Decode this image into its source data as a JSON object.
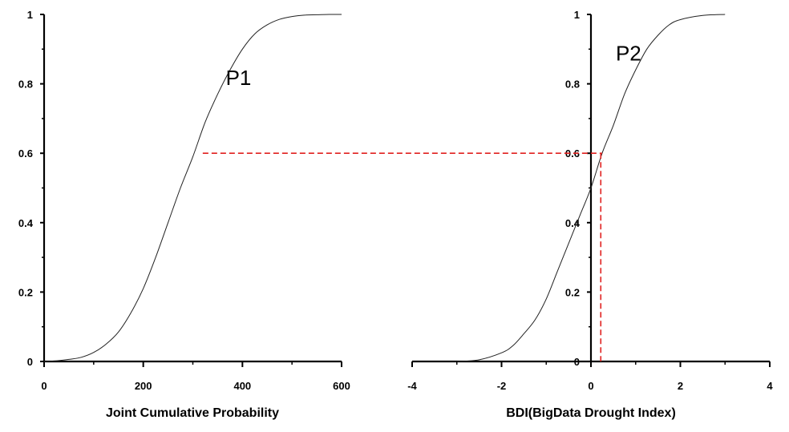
{
  "chart_data": [
    {
      "type": "line",
      "xlabel": "Joint Cumulative Probability",
      "xlim": [
        0,
        600
      ],
      "ylim": [
        0,
        1
      ],
      "x_ticks": [
        0,
        200,
        400,
        600
      ],
      "y_ticks": [
        0,
        0.2,
        0.4,
        0.6,
        0.8,
        1
      ],
      "x_tick_labels": [
        "0",
        "200",
        "400",
        "600"
      ],
      "y_tick_labels": [
        "0",
        "0.2",
        "0.4",
        "0.6",
        "0.8",
        "1"
      ],
      "series": [
        {
          "name": "P1",
          "x": [
            0,
            25,
            50,
            75,
            100,
            125,
            150,
            175,
            200,
            225,
            250,
            275,
            300,
            325,
            350,
            375,
            400,
            425,
            450,
            475,
            500,
            525,
            550,
            575,
            600
          ],
          "y": [
            0.0,
            0.002,
            0.006,
            0.012,
            0.026,
            0.05,
            0.085,
            0.14,
            0.21,
            0.3,
            0.4,
            0.5,
            0.59,
            0.69,
            0.77,
            0.84,
            0.9,
            0.944,
            0.97,
            0.986,
            0.994,
            0.998,
            0.999,
            1.0,
            1.0
          ]
        }
      ],
      "reference_lines": [
        {
          "style": "dashed",
          "color": "#e0201f",
          "from": [
            320,
            0.6
          ],
          "to": "P2 at 0.6"
        }
      ],
      "annotations": [
        {
          "text": "P1",
          "x": 402,
          "y": 0.82
        }
      ]
    },
    {
      "type": "line",
      "xlabel": "BDI(BigData Drought Index)",
      "xlim": [
        -4,
        4
      ],
      "ylim": [
        0,
        1
      ],
      "x_ticks": [
        -4,
        -2,
        0,
        2,
        4
      ],
      "y_ticks": [
        0,
        0.2,
        0.4,
        0.6,
        0.8,
        1
      ],
      "x_tick_labels": [
        "-4",
        "-2",
        "0",
        "2",
        "4"
      ],
      "y_tick_labels": [
        "0",
        "0.2",
        "0.4",
        "0.6",
        "0.8",
        "1"
      ],
      "series": [
        {
          "name": "P2",
          "x": [
            -3.0,
            -2.5,
            -2.0,
            -1.75,
            -1.5,
            -1.25,
            -1.0,
            -0.75,
            -0.5,
            -0.25,
            0.0,
            0.25,
            0.5,
            0.75,
            1.0,
            1.25,
            1.5,
            1.75,
            2.0,
            2.5,
            3.0
          ],
          "y": [
            0.0,
            0.005,
            0.025,
            0.045,
            0.08,
            0.12,
            0.18,
            0.26,
            0.34,
            0.42,
            0.5,
            0.6,
            0.68,
            0.77,
            0.84,
            0.9,
            0.94,
            0.97,
            0.985,
            0.997,
            1.0
          ]
        }
      ],
      "reference_lines": [
        {
          "style": "dashed",
          "color": "#e0201f",
          "from": [
            0.22,
            0.6
          ],
          "to": [
            0.22,
            0
          ]
        }
      ],
      "annotations": [
        {
          "text": "P2",
          "x": 0.95,
          "y": 0.89
        }
      ]
    }
  ]
}
